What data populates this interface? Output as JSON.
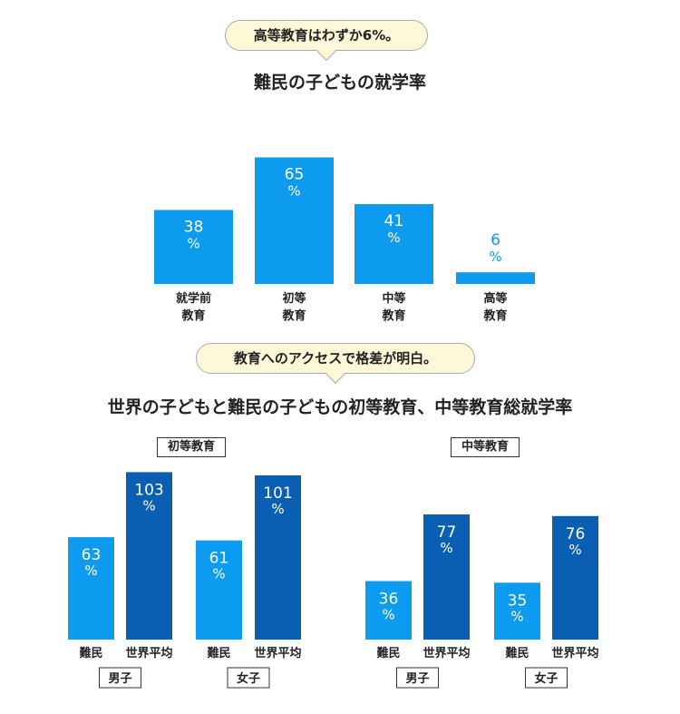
{
  "callout1": "高等教育はわずか6%。",
  "callout2": "教育へのアクセスで格差が明白。",
  "colors": {
    "refugee": "#0d9bf0",
    "world": "#0b5fb3",
    "callout_bg": "#fdf8d8"
  },
  "chart_data": [
    {
      "type": "bar",
      "title": "難民の子どもの就学率",
      "categories": [
        [
          "就学前",
          "教育"
        ],
        [
          "初等",
          "教育"
        ],
        [
          "中等",
          "教育"
        ],
        [
          "高等",
          "教育"
        ]
      ],
      "values": [
        38,
        65,
        41,
        6
      ],
      "unit": "%",
      "ylim": [
        0,
        70
      ]
    },
    {
      "type": "bar",
      "title": "世界の子どもと難民の子どもの初等教育、中等教育総就学率",
      "unit": "%",
      "ylim": [
        0,
        105
      ],
      "series_names": [
        "難民",
        "世界平均"
      ],
      "panels": [
        {
          "label": "初等教育",
          "groups": [
            {
              "label": "男子",
              "values": [
                63,
                103
              ]
            },
            {
              "label": "女子",
              "values": [
                61,
                101
              ]
            }
          ]
        },
        {
          "label": "中等教育",
          "groups": [
            {
              "label": "男子",
              "values": [
                36,
                77
              ]
            },
            {
              "label": "女子",
              "values": [
                35,
                76
              ]
            }
          ]
        }
      ]
    }
  ]
}
